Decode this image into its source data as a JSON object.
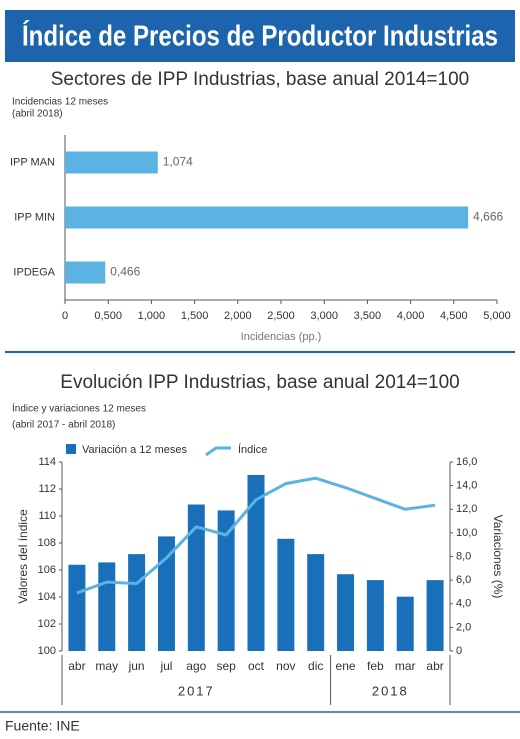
{
  "header": {
    "title": "Índice de Precios de Productor Industrias"
  },
  "chart_data": [
    {
      "type": "hbar",
      "title": "Sectores de IPP Industrias, base anual 2014=100",
      "subtitle": [
        "Incidencias 12 meses",
        "(abril 2018)"
      ],
      "categories": [
        "IPP MAN",
        "IPP MIN",
        "IPDEGA"
      ],
      "values": [
        1.074,
        4.666,
        0.466
      ],
      "value_labels": [
        "1,074",
        "4,666",
        "0,466"
      ],
      "color": "#5bb3e4",
      "x_label": "Incidencias (pp.)",
      "xlim": [
        0,
        5
      ],
      "xticks": [
        0,
        {
          "value": 0.5,
          "label": "0,500"
        },
        {
          "value": 1,
          "label": "1,000"
        },
        {
          "value": 1.5,
          "label": "1,500"
        },
        {
          "value": 2,
          "label": "2,000"
        },
        {
          "value": 2.5,
          "label": "2,500"
        },
        {
          "value": 3,
          "label": "3,000"
        },
        {
          "value": 3.5,
          "label": "3,500"
        },
        {
          "value": 4,
          "label": "4,000"
        },
        {
          "value": 4.5,
          "label": "4,500"
        },
        {
          "value": 5,
          "label": "5,000"
        }
      ]
    },
    {
      "type": "combo",
      "title": "Evolución IPP Industrias, base anual 2014=100",
      "subtitle": [
        "Índice y variaciones 12 meses",
        "(abril 2017 - abril 2018)"
      ],
      "groups": [
        {
          "name": "2017",
          "categories": [
            "abr",
            "may",
            "jun",
            "jul",
            "ago",
            "sep",
            "oct",
            "nov",
            "dic"
          ]
        },
        {
          "name": "2018",
          "categories": [
            "ene",
            "feb",
            "mar",
            "abr"
          ]
        }
      ],
      "series": [
        {
          "name": "Variación a 12 meses",
          "type": "bar",
          "axis": "y2",
          "color": "#1a6fba",
          "values": [
            7.3,
            7.5,
            8.2,
            9.7,
            12.4,
            11.9,
            14.9,
            9.5,
            8.2,
            6.5,
            6.0,
            4.6,
            6.0
          ]
        },
        {
          "name": "Índice",
          "type": "line",
          "axis": "y",
          "color": "#5bb3e4",
          "values": [
            104.3,
            105.1,
            105.0,
            106.9,
            109.2,
            108.6,
            111.2,
            112.4,
            112.8,
            112.1,
            111.3,
            110.5,
            110.8
          ]
        }
      ],
      "y_label": "Valores del índice",
      "y2_label": "Variaciones (%)",
      "ylim": [
        100,
        114
      ],
      "yticks": [
        100,
        102,
        104,
        106,
        108,
        110,
        112,
        114
      ],
      "y2lim": [
        0,
        16
      ],
      "y2ticks": [
        0,
        {
          "value": 2,
          "label": "2,0"
        },
        {
          "value": 4,
          "label": "4,0"
        },
        {
          "value": 6,
          "label": "6,0"
        },
        {
          "value": 8,
          "label": "8,0"
        },
        {
          "value": 10,
          "label": "10,0"
        },
        {
          "value": 12,
          "label": "12,0"
        },
        {
          "value": 14,
          "label": "14,0"
        },
        {
          "value": 16,
          "label": "16,0"
        }
      ]
    }
  ],
  "footer": {
    "source": "Fuente: INE"
  }
}
